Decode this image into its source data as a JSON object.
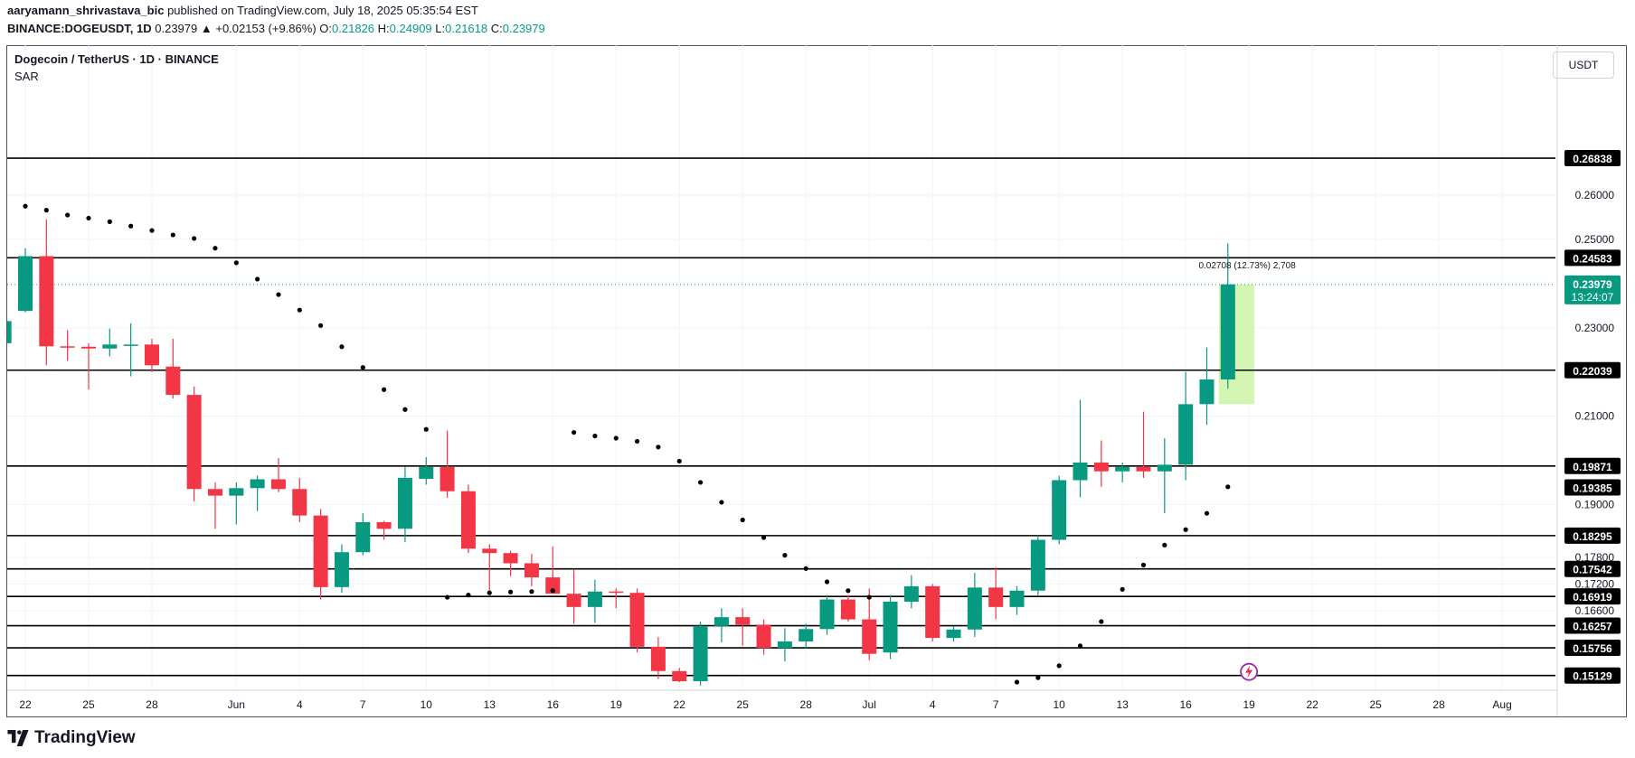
{
  "header": {
    "publisher": "aaryamann_shrivastava_bic",
    "published_text": "published on TradingView.com, July 18, 2025 05:35:54 EST",
    "symbol": "BINANCE:DOGEUSDT, 1D",
    "last": "0.23979",
    "change": "▲ +0.02153 (+9.86%)",
    "o_label": "O:",
    "o_value": "0.21826",
    "h_label": "H:",
    "h_value": "0.24909",
    "l_label": "L:",
    "l_value": "0.21618",
    "c_label": "C:",
    "c_value": "0.23979"
  },
  "legend": {
    "title": "Dogecoin / TetherUS · 1D · BINANCE",
    "indicator": "SAR"
  },
  "currency": "USDT",
  "brand": "TradingView",
  "colors": {
    "up": "#089981",
    "down": "#f23645",
    "line": "#000000",
    "highlight": "#ccf5a6",
    "measure_text": "#131722"
  },
  "chart_data": {
    "type": "candlestick",
    "ylim": [
      0.1498,
      0.2735
    ],
    "x_ticks": [
      {
        "idx": 0,
        "label": "22"
      },
      {
        "idx": 3,
        "label": "25"
      },
      {
        "idx": 6,
        "label": "28"
      },
      {
        "idx": 10,
        "label": "Jun"
      },
      {
        "idx": 13,
        "label": "4"
      },
      {
        "idx": 16,
        "label": "7"
      },
      {
        "idx": 19,
        "label": "10"
      },
      {
        "idx": 22,
        "label": "13"
      },
      {
        "idx": 25,
        "label": "16"
      },
      {
        "idx": 28,
        "label": "19"
      },
      {
        "idx": 31,
        "label": "22"
      },
      {
        "idx": 34,
        "label": "25"
      },
      {
        "idx": 37,
        "label": "28"
      },
      {
        "idx": 40,
        "label": "Jul"
      },
      {
        "idx": 43,
        "label": "4"
      },
      {
        "idx": 46,
        "label": "7"
      },
      {
        "idx": 49,
        "label": "10"
      },
      {
        "idx": 52,
        "label": "13"
      },
      {
        "idx": 55,
        "label": "16"
      },
      {
        "idx": 58,
        "label": "19"
      },
      {
        "idx": 61,
        "label": "22"
      },
      {
        "idx": 64,
        "label": "25"
      },
      {
        "idx": 67,
        "label": "28"
      },
      {
        "idx": 70,
        "label": "Aug"
      }
    ],
    "y_ticks": [
      {
        "v": 0.26,
        "label": "0.26000"
      },
      {
        "v": 0.25,
        "label": "0.25000"
      },
      {
        "v": 0.23,
        "label": "0.23000"
      },
      {
        "v": 0.21,
        "label": "0.21000"
      },
      {
        "v": 0.19,
        "label": "0.19000"
      },
      {
        "v": 0.178,
        "label": "0.17800"
      },
      {
        "v": 0.172,
        "label": "0.17200"
      },
      {
        "v": 0.166,
        "label": "0.16600"
      }
    ],
    "levels": [
      {
        "v": 0.26838,
        "label": "0.26838"
      },
      {
        "v": 0.24583,
        "label": "0.24583"
      },
      {
        "v": 0.22039,
        "label": "0.22039"
      },
      {
        "v": 0.19871,
        "label": "0.19871"
      },
      {
        "v": 0.18295,
        "label": "0.18295"
      },
      {
        "v": 0.17542,
        "label": "0.17542"
      },
      {
        "v": 0.16919,
        "label": "0.16919"
      },
      {
        "v": 0.16257,
        "label": "0.16257"
      },
      {
        "v": 0.15756,
        "label": "0.15756"
      },
      {
        "v": 0.15129,
        "label": "0.15129"
      }
    ],
    "secondary_levels": [
      {
        "v": 0.19385,
        "label": "0.19385"
      }
    ],
    "last_price": {
      "v": 0.23979,
      "label": "0.23979",
      "countdown": "13:24:07"
    },
    "measure": {
      "label": "0.02708 (12.73%) 2,708",
      "from_idx": 57,
      "to_idx": 58,
      "low": 0.2127,
      "high": 0.23979
    },
    "candles": [
      {
        "i": -1,
        "o": 0.2265,
        "h": 0.233,
        "l": 0.2235,
        "c": 0.2315
      },
      {
        "i": 0,
        "o": 0.2338,
        "h": 0.248,
        "l": 0.2335,
        "c": 0.2462
      },
      {
        "i": 1,
        "o": 0.2462,
        "h": 0.2545,
        "l": 0.2215,
        "c": 0.2258
      },
      {
        "i": 2,
        "o": 0.2258,
        "h": 0.2295,
        "l": 0.2225,
        "c": 0.2255
      },
      {
        "i": 3,
        "o": 0.2257,
        "h": 0.2265,
        "l": 0.216,
        "c": 0.2253
      },
      {
        "i": 4,
        "o": 0.2253,
        "h": 0.2298,
        "l": 0.2235,
        "c": 0.2262
      },
      {
        "i": 5,
        "o": 0.226,
        "h": 0.231,
        "l": 0.219,
        "c": 0.2262
      },
      {
        "i": 6,
        "o": 0.2262,
        "h": 0.2275,
        "l": 0.22,
        "c": 0.2215
      },
      {
        "i": 7,
        "o": 0.2212,
        "h": 0.2275,
        "l": 0.214,
        "c": 0.2148
      },
      {
        "i": 8,
        "o": 0.2148,
        "h": 0.2167,
        "l": 0.1907,
        "c": 0.1935
      },
      {
        "i": 9,
        "o": 0.1935,
        "h": 0.195,
        "l": 0.1845,
        "c": 0.192
      },
      {
        "i": 10,
        "o": 0.192,
        "h": 0.195,
        "l": 0.1855,
        "c": 0.1937
      },
      {
        "i": 11,
        "o": 0.1937,
        "h": 0.1965,
        "l": 0.1885,
        "c": 0.1957
      },
      {
        "i": 12,
        "o": 0.1957,
        "h": 0.2005,
        "l": 0.1928,
        "c": 0.1935
      },
      {
        "i": 13,
        "o": 0.1935,
        "h": 0.196,
        "l": 0.186,
        "c": 0.1875
      },
      {
        "i": 14,
        "o": 0.1875,
        "h": 0.189,
        "l": 0.1685,
        "c": 0.1713
      },
      {
        "i": 15,
        "o": 0.1713,
        "h": 0.181,
        "l": 0.17,
        "c": 0.1792
      },
      {
        "i": 16,
        "o": 0.1792,
        "h": 0.188,
        "l": 0.1785,
        "c": 0.186
      },
      {
        "i": 17,
        "o": 0.186,
        "h": 0.1863,
        "l": 0.182,
        "c": 0.1845
      },
      {
        "i": 18,
        "o": 0.1845,
        "h": 0.1985,
        "l": 0.1815,
        "c": 0.196
      },
      {
        "i": 19,
        "o": 0.1958,
        "h": 0.2007,
        "l": 0.1945,
        "c": 0.1985
      },
      {
        "i": 20,
        "o": 0.1985,
        "h": 0.2067,
        "l": 0.1915,
        "c": 0.193
      },
      {
        "i": 21,
        "o": 0.193,
        "h": 0.1945,
        "l": 0.179,
        "c": 0.18
      },
      {
        "i": 22,
        "o": 0.18,
        "h": 0.181,
        "l": 0.17,
        "c": 0.179
      },
      {
        "i": 23,
        "o": 0.179,
        "h": 0.1795,
        "l": 0.1738,
        "c": 0.1767
      },
      {
        "i": 24,
        "o": 0.1767,
        "h": 0.1788,
        "l": 0.1715,
        "c": 0.1735
      },
      {
        "i": 25,
        "o": 0.1735,
        "h": 0.1805,
        "l": 0.17,
        "c": 0.1698
      },
      {
        "i": 26,
        "o": 0.1698,
        "h": 0.1752,
        "l": 0.163,
        "c": 0.1668
      },
      {
        "i": 27,
        "o": 0.1668,
        "h": 0.173,
        "l": 0.1632,
        "c": 0.1703
      },
      {
        "i": 28,
        "o": 0.1703,
        "h": 0.171,
        "l": 0.1665,
        "c": 0.17
      },
      {
        "i": 29,
        "o": 0.17,
        "h": 0.171,
        "l": 0.1565,
        "c": 0.1578
      },
      {
        "i": 30,
        "o": 0.1578,
        "h": 0.16,
        "l": 0.1505,
        "c": 0.1523
      },
      {
        "i": 31,
        "o": 0.1523,
        "h": 0.153,
        "l": 0.1498,
        "c": 0.15
      },
      {
        "i": 32,
        "o": 0.15,
        "h": 0.1635,
        "l": 0.149,
        "c": 0.1625
      },
      {
        "i": 33,
        "o": 0.1625,
        "h": 0.1665,
        "l": 0.1588,
        "c": 0.1645
      },
      {
        "i": 34,
        "o": 0.1645,
        "h": 0.1665,
        "l": 0.158,
        "c": 0.1628
      },
      {
        "i": 35,
        "o": 0.1628,
        "h": 0.164,
        "l": 0.156,
        "c": 0.1575
      },
      {
        "i": 36,
        "o": 0.1575,
        "h": 0.162,
        "l": 0.1545,
        "c": 0.159
      },
      {
        "i": 37,
        "o": 0.159,
        "h": 0.163,
        "l": 0.1575,
        "c": 0.1618
      },
      {
        "i": 38,
        "o": 0.1618,
        "h": 0.1695,
        "l": 0.1605,
        "c": 0.1685
      },
      {
        "i": 39,
        "o": 0.1685,
        "h": 0.1695,
        "l": 0.1635,
        "c": 0.164
      },
      {
        "i": 40,
        "o": 0.164,
        "h": 0.171,
        "l": 0.1548,
        "c": 0.1562
      },
      {
        "i": 41,
        "o": 0.1565,
        "h": 0.1695,
        "l": 0.155,
        "c": 0.168
      },
      {
        "i": 42,
        "o": 0.168,
        "h": 0.174,
        "l": 0.1665,
        "c": 0.1715
      },
      {
        "i": 43,
        "o": 0.1715,
        "h": 0.172,
        "l": 0.159,
        "c": 0.1598
      },
      {
        "i": 44,
        "o": 0.1598,
        "h": 0.1625,
        "l": 0.159,
        "c": 0.1617
      },
      {
        "i": 45,
        "o": 0.1617,
        "h": 0.1745,
        "l": 0.16,
        "c": 0.1712
      },
      {
        "i": 46,
        "o": 0.1712,
        "h": 0.1758,
        "l": 0.164,
        "c": 0.1668
      },
      {
        "i": 47,
        "o": 0.1668,
        "h": 0.1715,
        "l": 0.165,
        "c": 0.1705
      },
      {
        "i": 48,
        "o": 0.1705,
        "h": 0.183,
        "l": 0.1695,
        "c": 0.182
      },
      {
        "i": 49,
        "o": 0.182,
        "h": 0.1965,
        "l": 0.181,
        "c": 0.1955
      },
      {
        "i": 50,
        "o": 0.1955,
        "h": 0.2137,
        "l": 0.1916,
        "c": 0.1995
      },
      {
        "i": 51,
        "o": 0.1995,
        "h": 0.2045,
        "l": 0.194,
        "c": 0.1975
      },
      {
        "i": 52,
        "o": 0.1975,
        "h": 0.1995,
        "l": 0.195,
        "c": 0.1985
      },
      {
        "i": 53,
        "o": 0.1985,
        "h": 0.211,
        "l": 0.196,
        "c": 0.1975
      },
      {
        "i": 54,
        "o": 0.1975,
        "h": 0.205,
        "l": 0.188,
        "c": 0.199
      },
      {
        "i": 55,
        "o": 0.199,
        "h": 0.22,
        "l": 0.1955,
        "c": 0.2127
      },
      {
        "i": 56,
        "o": 0.2127,
        "h": 0.2255,
        "l": 0.208,
        "c": 0.2183
      },
      {
        "i": 57,
        "o": 0.2183,
        "h": 0.2491,
        "l": 0.2162,
        "c": 0.2398
      }
    ],
    "sar": [
      {
        "i": -1,
        "v": 0.2585
      },
      {
        "i": 0,
        "v": 0.2575
      },
      {
        "i": 1,
        "v": 0.2566
      },
      {
        "i": 2,
        "v": 0.2555
      },
      {
        "i": 3,
        "v": 0.2548
      },
      {
        "i": 4,
        "v": 0.254
      },
      {
        "i": 5,
        "v": 0.253
      },
      {
        "i": 6,
        "v": 0.252
      },
      {
        "i": 7,
        "v": 0.251
      },
      {
        "i": 8,
        "v": 0.2502
      },
      {
        "i": 9,
        "v": 0.248
      },
      {
        "i": 10,
        "v": 0.2447
      },
      {
        "i": 11,
        "v": 0.241
      },
      {
        "i": 12,
        "v": 0.2375
      },
      {
        "i": 13,
        "v": 0.234
      },
      {
        "i": 14,
        "v": 0.2305
      },
      {
        "i": 15,
        "v": 0.2257
      },
      {
        "i": 16,
        "v": 0.221
      },
      {
        "i": 17,
        "v": 0.216
      },
      {
        "i": 18,
        "v": 0.2115
      },
      {
        "i": 19,
        "v": 0.207
      },
      {
        "i": 20,
        "v": 0.169
      },
      {
        "i": 21,
        "v": 0.1695
      },
      {
        "i": 22,
        "v": 0.17
      },
      {
        "i": 23,
        "v": 0.1702
      },
      {
        "i": 24,
        "v": 0.1703
      },
      {
        "i": 25,
        "v": 0.1705
      },
      {
        "i": 26,
        "v": 0.2063
      },
      {
        "i": 27,
        "v": 0.2055
      },
      {
        "i": 28,
        "v": 0.205
      },
      {
        "i": 29,
        "v": 0.2043
      },
      {
        "i": 30,
        "v": 0.203
      },
      {
        "i": 31,
        "v": 0.1998
      },
      {
        "i": 32,
        "v": 0.195
      },
      {
        "i": 33,
        "v": 0.1905
      },
      {
        "i": 34,
        "v": 0.1865
      },
      {
        "i": 35,
        "v": 0.1825
      },
      {
        "i": 36,
        "v": 0.1785
      },
      {
        "i": 37,
        "v": 0.1755
      },
      {
        "i": 38,
        "v": 0.1725
      },
      {
        "i": 39,
        "v": 0.1705
      },
      {
        "i": 40,
        "v": 0.169
      },
      {
        "i": 47,
        "v": 0.1498
      },
      {
        "i": 48,
        "v": 0.1508
      },
      {
        "i": 49,
        "v": 0.1535
      },
      {
        "i": 50,
        "v": 0.158
      },
      {
        "i": 51,
        "v": 0.1635
      },
      {
        "i": 52,
        "v": 0.1708
      },
      {
        "i": 53,
        "v": 0.1763
      },
      {
        "i": 54,
        "v": 0.1808
      },
      {
        "i": 55,
        "v": 0.1843
      },
      {
        "i": 56,
        "v": 0.188
      },
      {
        "i": 57,
        "v": 0.194
      }
    ]
  }
}
